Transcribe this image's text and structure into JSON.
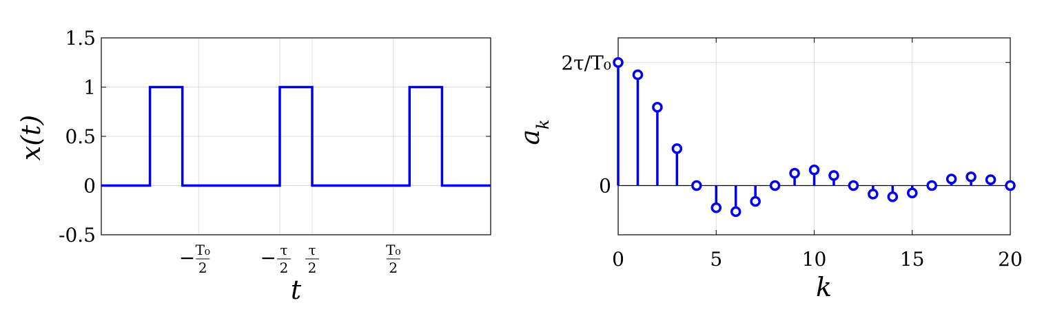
{
  "chart_data": [
    {
      "type": "line",
      "ylabel": "x(t)",
      "xlabel": "t",
      "ylim": [
        -0.5,
        1.5
      ],
      "y_ticks": [
        "1.5",
        "1",
        "0.5",
        "0",
        "-0.5"
      ],
      "x_ticks": [
        {
          "sign": "−",
          "num": "T₀",
          "den": "2"
        },
        {
          "sign": "−",
          "num": "τ",
          "den": "2"
        },
        {
          "sign": "",
          "num": "τ",
          "den": "2"
        },
        {
          "sign": "",
          "num": "T₀",
          "den": "2"
        }
      ],
      "grid": true,
      "color": "#0000ee",
      "series": [
        {
          "x": [
            -2.0,
            -1.5,
            -1.5,
            -1.1667,
            -1.1667,
            -0.1667,
            -0.1667,
            0.1667,
            0.1667,
            1.1667,
            1.1667,
            1.5,
            1.5,
            2.0
          ],
          "values": [
            0,
            0,
            1,
            1,
            0,
            0,
            1,
            1,
            0,
            0,
            1,
            1,
            0,
            0
          ]
        }
      ]
    },
    {
      "type": "stem",
      "ylabel": "a_k",
      "xlabel": "k",
      "xlim": [
        0,
        20
      ],
      "y_ticks": [
        "2τ/T₀",
        "0"
      ],
      "x_ticks": [
        "0",
        "5",
        "10",
        "15",
        "20"
      ],
      "grid": true,
      "color": "#0000ee",
      "categories": [
        0,
        1,
        2,
        3,
        4,
        5,
        6,
        7,
        8,
        9,
        10,
        11,
        12,
        13,
        14,
        15,
        16,
        17,
        18,
        19,
        20
      ],
      "values": [
        1.0,
        0.9003,
        0.6366,
        0.3001,
        0.0,
        -0.1801,
        -0.2122,
        -0.1286,
        0.0,
        0.1,
        0.1273,
        0.0818,
        0.0,
        -0.0693,
        -0.0909,
        -0.06,
        0.0,
        0.053,
        0.0707,
        0.0474,
        0.0
      ]
    }
  ]
}
